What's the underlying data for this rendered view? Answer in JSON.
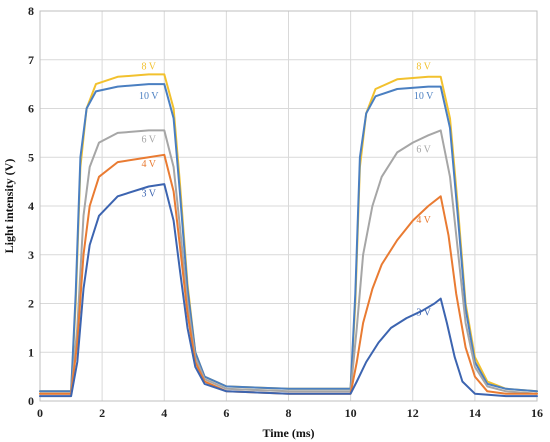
{
  "chart_data": {
    "type": "line",
    "title": "",
    "xlabel": "Time (ms)",
    "ylabel": "Light intensity (V)",
    "xlim": [
      0,
      16
    ],
    "ylim": [
      0,
      8
    ],
    "xticks": [
      0,
      2,
      4,
      6,
      8,
      10,
      12,
      14,
      16
    ],
    "yticks": [
      0,
      1,
      2,
      3,
      4,
      5,
      6,
      7,
      8
    ],
    "grid": true,
    "legend": "none (inline labels)",
    "series": [
      {
        "name": "8 V",
        "color": "#f2c12e",
        "label": {
          "text": "8 V",
          "positions": [
            {
              "x": 3.5,
              "y": 6.8
            },
            {
              "x": 12.35,
              "y": 6.8
            }
          ]
        },
        "points": [
          [
            0,
            0.2
          ],
          [
            1.0,
            0.2
          ],
          [
            1.15,
            2.0
          ],
          [
            1.3,
            4.8
          ],
          [
            1.5,
            6.0
          ],
          [
            1.8,
            6.5
          ],
          [
            2.5,
            6.65
          ],
          [
            3.5,
            6.7
          ],
          [
            4.0,
            6.7
          ],
          [
            4.3,
            6.0
          ],
          [
            4.5,
            4.5
          ],
          [
            4.75,
            2.4
          ],
          [
            5.0,
            1.0
          ],
          [
            5.3,
            0.5
          ],
          [
            6.0,
            0.3
          ],
          [
            8.0,
            0.25
          ],
          [
            10.0,
            0.25
          ],
          [
            10.15,
            2.0
          ],
          [
            10.3,
            4.8
          ],
          [
            10.5,
            5.9
          ],
          [
            10.8,
            6.4
          ],
          [
            11.5,
            6.6
          ],
          [
            12.5,
            6.65
          ],
          [
            12.9,
            6.65
          ],
          [
            13.2,
            5.8
          ],
          [
            13.45,
            4.0
          ],
          [
            13.7,
            2.0
          ],
          [
            14.0,
            0.9
          ],
          [
            14.4,
            0.4
          ],
          [
            15.0,
            0.25
          ],
          [
            16.0,
            0.2
          ]
        ]
      },
      {
        "name": "10 V",
        "color": "#4a7fc1",
        "label": {
          "text": "10 V",
          "positions": [
            {
              "x": 3.5,
              "y": 6.2
            },
            {
              "x": 12.35,
              "y": 6.2
            }
          ]
        },
        "points": [
          [
            0,
            0.2
          ],
          [
            1.0,
            0.2
          ],
          [
            1.15,
            2.2
          ],
          [
            1.3,
            5.0
          ],
          [
            1.5,
            6.0
          ],
          [
            1.8,
            6.35
          ],
          [
            2.5,
            6.45
          ],
          [
            3.5,
            6.5
          ],
          [
            4.0,
            6.5
          ],
          [
            4.3,
            5.8
          ],
          [
            4.5,
            4.3
          ],
          [
            4.75,
            2.3
          ],
          [
            5.0,
            1.0
          ],
          [
            5.3,
            0.5
          ],
          [
            6.0,
            0.3
          ],
          [
            8.0,
            0.25
          ],
          [
            10.0,
            0.25
          ],
          [
            10.15,
            2.2
          ],
          [
            10.3,
            5.0
          ],
          [
            10.5,
            5.9
          ],
          [
            10.8,
            6.25
          ],
          [
            11.5,
            6.4
          ],
          [
            12.5,
            6.45
          ],
          [
            12.9,
            6.45
          ],
          [
            13.2,
            5.6
          ],
          [
            13.45,
            3.8
          ],
          [
            13.7,
            1.9
          ],
          [
            14.0,
            0.8
          ],
          [
            14.4,
            0.35
          ],
          [
            15.0,
            0.25
          ],
          [
            16.0,
            0.2
          ]
        ]
      },
      {
        "name": "6 V",
        "color": "#a6a6a6",
        "label": {
          "text": "6 V",
          "positions": [
            {
              "x": 3.5,
              "y": 5.3
            },
            {
              "x": 12.35,
              "y": 5.1
            }
          ]
        },
        "points": [
          [
            0,
            0.15
          ],
          [
            1.0,
            0.15
          ],
          [
            1.2,
            1.5
          ],
          [
            1.4,
            3.8
          ],
          [
            1.6,
            4.8
          ],
          [
            1.9,
            5.3
          ],
          [
            2.5,
            5.5
          ],
          [
            3.5,
            5.55
          ],
          [
            4.0,
            5.55
          ],
          [
            4.3,
            4.8
          ],
          [
            4.5,
            3.6
          ],
          [
            4.75,
            2.0
          ],
          [
            5.0,
            0.9
          ],
          [
            5.3,
            0.45
          ],
          [
            6.0,
            0.25
          ],
          [
            8.0,
            0.2
          ],
          [
            10.0,
            0.2
          ],
          [
            10.2,
            1.5
          ],
          [
            10.4,
            3.0
          ],
          [
            10.7,
            4.0
          ],
          [
            11.0,
            4.6
          ],
          [
            11.5,
            5.1
          ],
          [
            12.0,
            5.3
          ],
          [
            12.5,
            5.45
          ],
          [
            12.9,
            5.55
          ],
          [
            13.2,
            4.6
          ],
          [
            13.45,
            3.1
          ],
          [
            13.7,
            1.6
          ],
          [
            14.0,
            0.7
          ],
          [
            14.4,
            0.3
          ],
          [
            15.0,
            0.2
          ],
          [
            16.0,
            0.15
          ]
        ]
      },
      {
        "name": "4 V",
        "color": "#e97b32",
        "label": {
          "text": "4 V",
          "positions": [
            {
              "x": 3.5,
              "y": 4.8
            },
            {
              "x": 12.35,
              "y": 3.65
            }
          ]
        },
        "points": [
          [
            0,
            0.15
          ],
          [
            1.0,
            0.15
          ],
          [
            1.2,
            1.2
          ],
          [
            1.4,
            3.0
          ],
          [
            1.6,
            4.0
          ],
          [
            1.9,
            4.6
          ],
          [
            2.5,
            4.9
          ],
          [
            3.5,
            5.0
          ],
          [
            4.0,
            5.05
          ],
          [
            4.3,
            4.3
          ],
          [
            4.5,
            3.2
          ],
          [
            4.75,
            1.8
          ],
          [
            5.0,
            0.8
          ],
          [
            5.3,
            0.4
          ],
          [
            6.0,
            0.2
          ],
          [
            8.0,
            0.15
          ],
          [
            10.0,
            0.15
          ],
          [
            10.2,
            0.8
          ],
          [
            10.4,
            1.6
          ],
          [
            10.7,
            2.3
          ],
          [
            11.0,
            2.8
          ],
          [
            11.5,
            3.3
          ],
          [
            12.0,
            3.7
          ],
          [
            12.5,
            4.0
          ],
          [
            12.9,
            4.2
          ],
          [
            13.15,
            3.4
          ],
          [
            13.4,
            2.2
          ],
          [
            13.7,
            1.1
          ],
          [
            14.0,
            0.5
          ],
          [
            14.4,
            0.2
          ],
          [
            15.0,
            0.15
          ],
          [
            16.0,
            0.15
          ]
        ]
      },
      {
        "name": "3 V",
        "color": "#3c64b0",
        "label": {
          "text": "3 V",
          "positions": [
            {
              "x": 3.5,
              "y": 4.2
            },
            {
              "x": 12.35,
              "y": 1.75
            }
          ]
        },
        "points": [
          [
            0,
            0.1
          ],
          [
            1.0,
            0.1
          ],
          [
            1.2,
            0.8
          ],
          [
            1.4,
            2.3
          ],
          [
            1.6,
            3.2
          ],
          [
            1.9,
            3.8
          ],
          [
            2.5,
            4.2
          ],
          [
            3.5,
            4.4
          ],
          [
            4.0,
            4.45
          ],
          [
            4.3,
            3.7
          ],
          [
            4.5,
            2.7
          ],
          [
            4.75,
            1.5
          ],
          [
            5.0,
            0.7
          ],
          [
            5.3,
            0.35
          ],
          [
            6.0,
            0.2
          ],
          [
            8.0,
            0.15
          ],
          [
            10.0,
            0.15
          ],
          [
            10.2,
            0.4
          ],
          [
            10.5,
            0.8
          ],
          [
            10.9,
            1.2
          ],
          [
            11.3,
            1.5
          ],
          [
            11.8,
            1.7
          ],
          [
            12.3,
            1.85
          ],
          [
            12.7,
            2.0
          ],
          [
            12.9,
            2.1
          ],
          [
            13.1,
            1.6
          ],
          [
            13.35,
            0.9
          ],
          [
            13.6,
            0.4
          ],
          [
            14.0,
            0.15
          ],
          [
            15.0,
            0.1
          ],
          [
            16.0,
            0.1
          ]
        ]
      }
    ]
  }
}
